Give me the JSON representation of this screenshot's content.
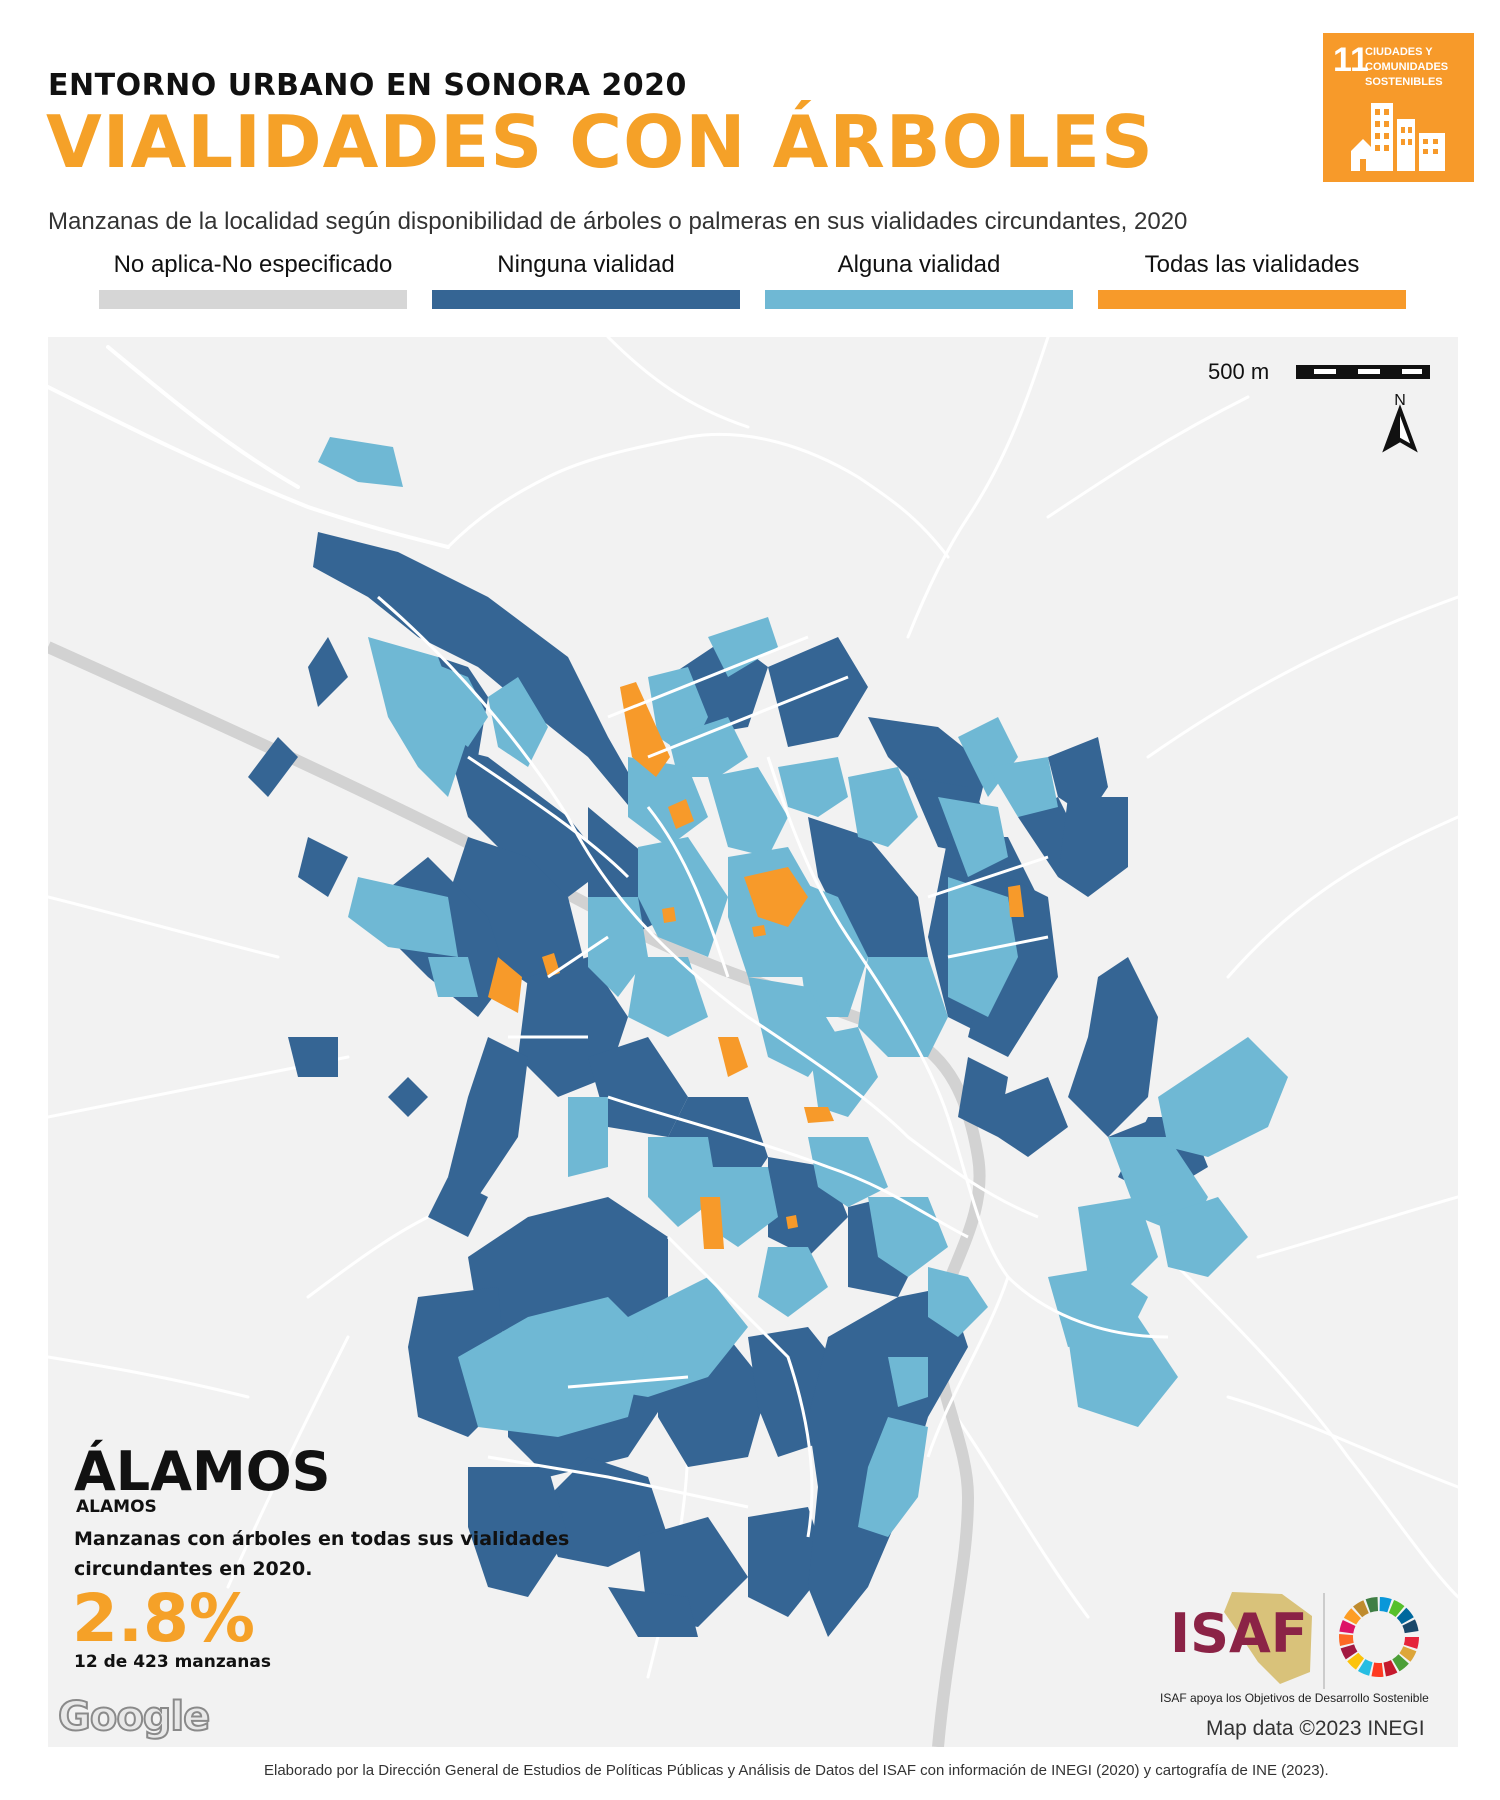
{
  "header": {
    "kicker": "ENTORNO URBANO EN SONORA 2020",
    "title": "VIALIDADES CON ÁRBOLES",
    "subtitle": "Manzanas de la localidad según disponibilidad de árboles o palmeras en sus vialidades circundantes, 2020"
  },
  "sdg_badge": {
    "number": "11",
    "label": "CIUDADES Y COMUNIDADES SOSTENIBLES",
    "color": "#f79a2a"
  },
  "legend": [
    {
      "label": "No aplica-No especificado",
      "color": "#d6d6d6"
    },
    {
      "label": "Ninguna vialidad",
      "color": "#356594"
    },
    {
      "label": "Alguna vialidad",
      "color": "#6fb8d4"
    },
    {
      "label": "Todas las vialidades",
      "color": "#f79a2a"
    }
  ],
  "map": {
    "scale_label": "500 m",
    "north_label": "N",
    "background_color": "#f2f2f2",
    "road_color": "#ffffff",
    "highway_color": "#d2d2d2"
  },
  "locality": {
    "name": "ÁLAMOS",
    "municipality": "ALAMOS",
    "stat_description": "Manzanas con árboles en todas sus vialidades circundantes en 2020.",
    "stat_value": "2.8%",
    "stat_count": "12 de 423 manzanas"
  },
  "footer": {
    "google_logo": "Google",
    "isaf_logo": "ISAF",
    "isaf_caption": "ISAF apoya los Objetivos de Desarrollo Sostenible",
    "map_attribution": "Map data ©2023 INEGI",
    "credits": "Elaborado por la Dirección General de Estudios de Políticas Públicas y Análisis de Datos del ISAF con información de INEGI (2020) y cartografía de INE (2023)."
  }
}
